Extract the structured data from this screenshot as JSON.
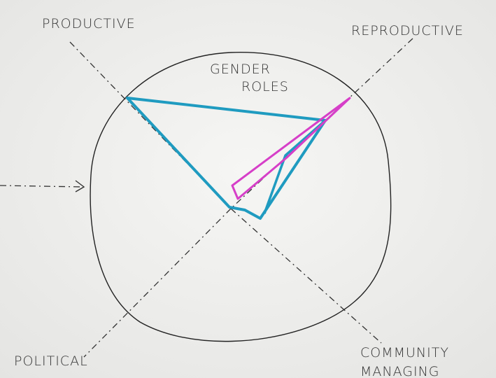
{
  "title": [
    "GENDER",
    "ROLES"
  ],
  "axes": [
    {
      "label": [
        "PRODUCTIVE"
      ]
    },
    {
      "label": [
        "REPRODUCTIVE"
      ]
    },
    {
      "label": [
        "COMMUNITY",
        "MANAGING"
      ]
    },
    {
      "label": [
        "POLITICAL"
      ]
    }
  ]
}
